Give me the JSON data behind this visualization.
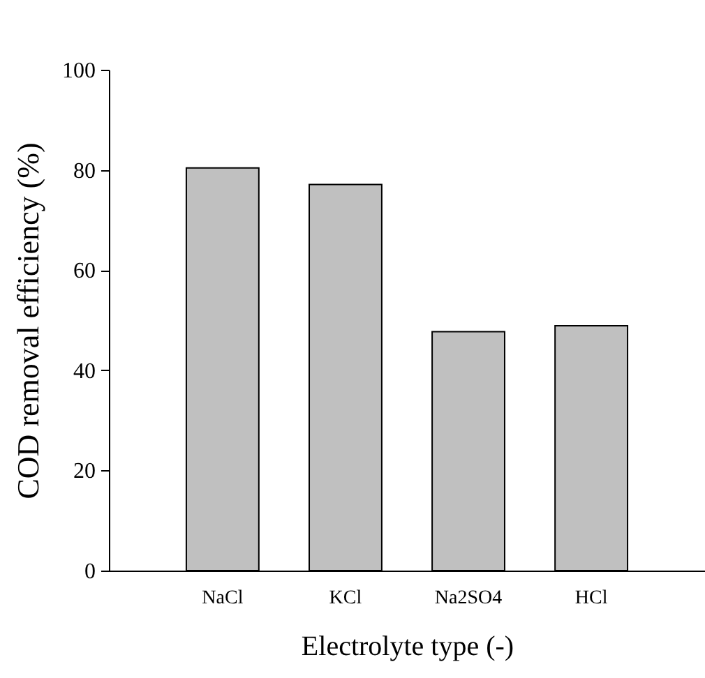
{
  "chart_data": {
    "type": "bar",
    "xlabel": "Electrolyte type (-)",
    "ylabel": "COD removal efficiency (%)",
    "categories": [
      "NaCl",
      "KCl",
      "Na2SO4",
      "HCl"
    ],
    "values": [
      80.4,
      77.1,
      47.7,
      48.9
    ],
    "color": "#c0c0c0",
    "ylim": [
      0,
      100
    ],
    "yticks": [
      0,
      20,
      40,
      60,
      80,
      100
    ],
    "grid": false
  }
}
